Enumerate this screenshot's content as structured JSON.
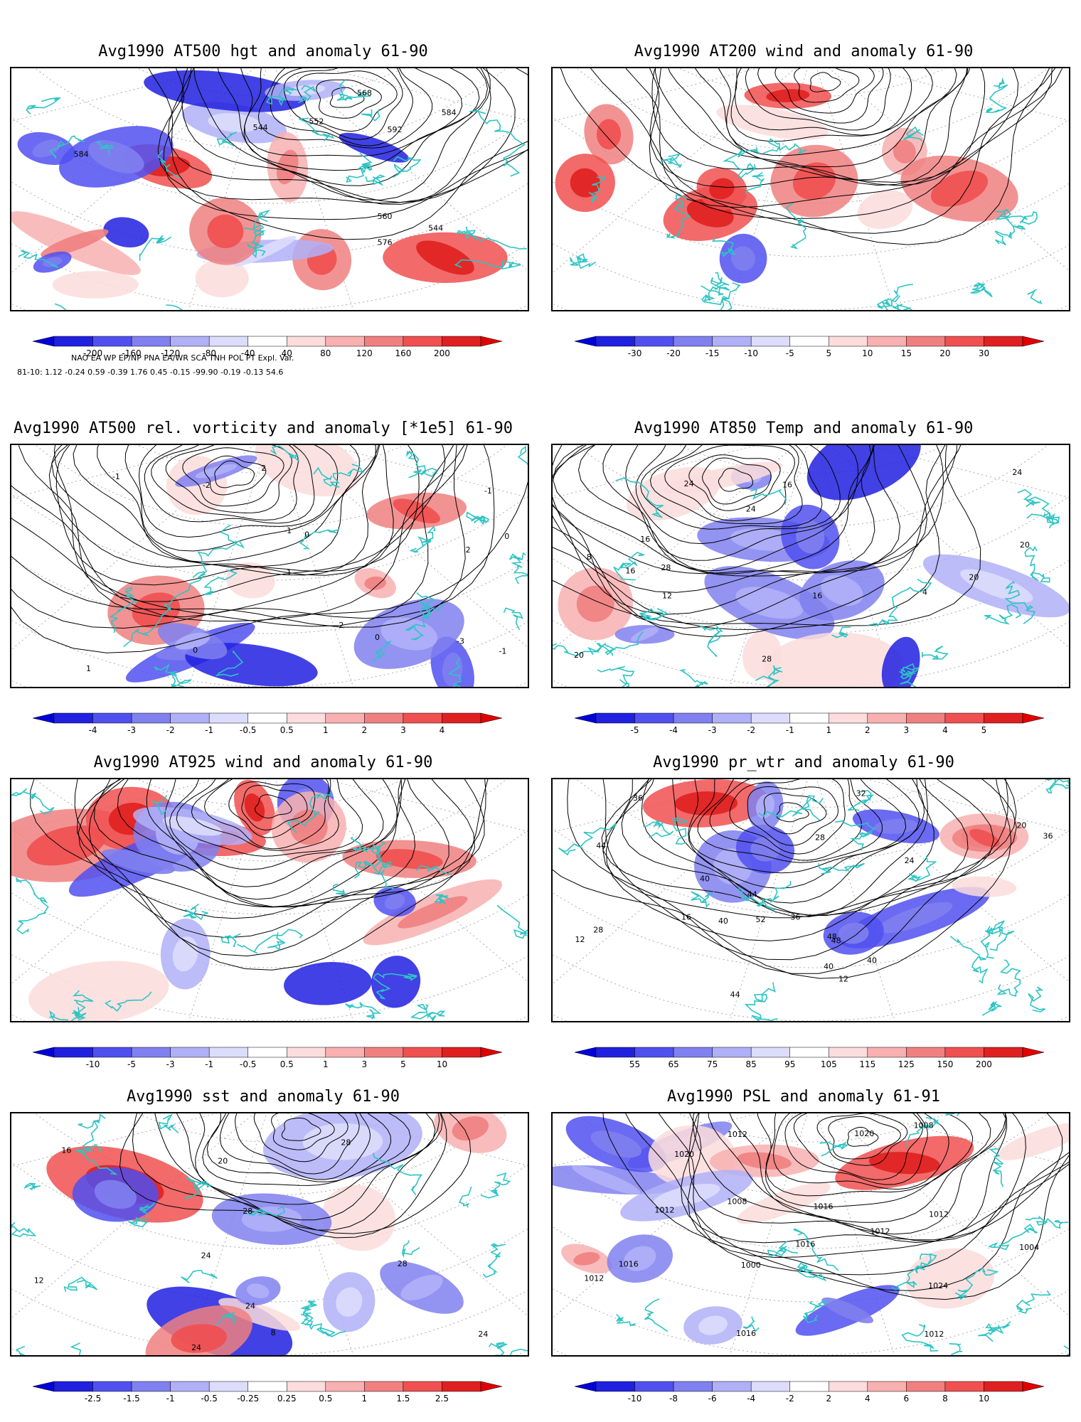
{
  "panels": [
    {
      "title": "Avg1990 AT500 hgt and anomaly 61-90",
      "contour_labels": [
        "544",
        "544",
        "552",
        "560",
        "568",
        "576",
        "584",
        "592",
        "584"
      ],
      "colorbar": [
        "-200",
        "-160",
        "-120",
        "-80",
        "-40",
        "40",
        "80",
        "120",
        "160",
        "200"
      ]
    },
    {
      "title": "Avg1990 AT200 wind and anomaly 61-90",
      "contour_labels": [],
      "colorbar": [
        "-30",
        "-20",
        "-15",
        "-10",
        "-5",
        "5",
        "10",
        "15",
        "20",
        "30"
      ]
    },
    {
      "title": "Avg1990 AT500 rel. vorticity and anomaly [*1e5] 61-90",
      "contour_labels": [
        "-1",
        "0",
        "-1",
        "1",
        "-2",
        "2",
        "-3",
        "0",
        "-1",
        "0",
        "1",
        "-2",
        "2",
        "0",
        "-1"
      ],
      "colorbar": [
        "-4",
        "-3",
        "-2",
        "-1",
        "-0.5",
        "0.5",
        "1",
        "2",
        "3",
        "4"
      ]
    },
    {
      "title": "Avg1990 AT850 Temp and anomaly 61-90",
      "contour_labels": [
        "20",
        "24",
        "4",
        "8",
        "12",
        "16",
        "16",
        "20",
        "24",
        "28",
        "16",
        "16",
        "24",
        "20",
        "28"
      ],
      "colorbar": [
        "-5",
        "-4",
        "-3",
        "-2",
        "-1",
        "1",
        "2",
        "3",
        "4",
        "5"
      ]
    },
    {
      "title": "Avg1990 AT925 wind and anomaly 61-90",
      "contour_labels": [],
      "colorbar": [
        "-10",
        "-5",
        "-3",
        "-1",
        "-0.5",
        "0.5",
        "1",
        "3",
        "5",
        "10"
      ]
    },
    {
      "title": "Avg1990 pr_wtr and anomaly 61-90",
      "contour_labels": [
        "52",
        "44",
        "12",
        "40",
        "36",
        "28",
        "24",
        "20",
        "16",
        "12",
        "48",
        "44",
        "40",
        "36",
        "40",
        "32",
        "28",
        "44",
        "48",
        "40",
        "36"
      ],
      "colorbar": [
        "55",
        "65",
        "75",
        "85",
        "95",
        "105",
        "115",
        "125",
        "150",
        "200"
      ]
    },
    {
      "title": "Avg1990 sst and anomaly 61-90",
      "contour_labels": [
        "28",
        "24",
        "8",
        "12",
        "16",
        "20",
        "24",
        "28",
        "24",
        "28",
        "24"
      ],
      "colorbar": [
        "-2.5",
        "-1.5",
        "-1",
        "-0.5",
        "-0.25",
        "0.25",
        "0.5",
        "1",
        "1.5",
        "2.5"
      ]
    },
    {
      "title": "Avg1990 PSL and anomaly 61-91",
      "contour_labels": [
        "1016",
        "1012",
        "1012",
        "1008",
        "1020",
        "1024",
        "1016",
        "1020",
        "1012",
        "1016",
        "1004",
        "1008",
        "1012",
        "1016",
        "1000",
        "1012",
        "1012"
      ],
      "colorbar": [
        "-10",
        "-8",
        "-6",
        "-4",
        "-2",
        "2",
        "4",
        "6",
        "8",
        "10"
      ]
    }
  ],
  "teleconnections": {
    "header": [
      "NAO",
      "EA",
      "WP",
      "EP/NP",
      "PNA",
      "EA/WR",
      "SCA",
      "TNH",
      "POL",
      "PT",
      "Expl. Var."
    ],
    "row_label": "81-10:",
    "values": [
      "1.12",
      "-0.24",
      "0.59",
      "-0.39",
      "1.76",
      "0.45",
      "-0.15",
      "-99.90",
      "-0.19",
      "-0.13",
      "54.6"
    ]
  },
  "colors": {
    "coast": "#2ec4c4",
    "contour": "#000000",
    "blue_scale": [
      "#2020e0",
      "#5050f0",
      "#8080f0",
      "#b0b0f8",
      "#dcdcfc"
    ],
    "red_scale": [
      "#fcdcdc",
      "#f8b0b0",
      "#f08080",
      "#f05050",
      "#e02020"
    ]
  }
}
